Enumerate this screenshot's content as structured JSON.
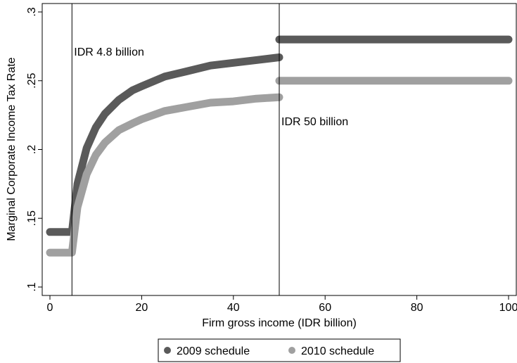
{
  "chart_data": {
    "type": "line",
    "title": "",
    "xlabel": "Firm gross income (IDR billion)",
    "ylabel": "Marginal Corporate Income Tax Rate",
    "xlim": [
      0,
      100
    ],
    "ylim": [
      0.1,
      0.3
    ],
    "x_ticks": [
      0,
      20,
      40,
      60,
      80,
      100
    ],
    "x_tick_labels": [
      "0",
      "20",
      "40",
      "60",
      "80",
      "100"
    ],
    "y_ticks": [
      0.1,
      0.15,
      0.2,
      0.25,
      0.3
    ],
    "y_tick_labels": [
      ".1",
      ".15",
      ".2",
      ".25",
      ".3"
    ],
    "grid": false,
    "legend_position": "bottom",
    "reference_lines": [
      {
        "x": 4.8,
        "label": "IDR 4.8 billion"
      },
      {
        "x": 50,
        "label": "IDR 50 billion"
      }
    ],
    "series": [
      {
        "name": "2009 schedule",
        "color": "#5a5a5a",
        "x": [
          0,
          4.8,
          6,
          8,
          10,
          12,
          15,
          18,
          20,
          25,
          30,
          35,
          40,
          45,
          50,
          50,
          100
        ],
        "values": [
          0.14,
          0.14,
          0.175,
          0.201,
          0.216,
          0.226,
          0.236,
          0.243,
          0.246,
          0.253,
          0.257,
          0.261,
          0.263,
          0.265,
          0.267,
          0.28,
          0.28
        ]
      },
      {
        "name": "2010 schedule",
        "color": "#a0a0a0",
        "x": [
          0,
          4.8,
          6,
          8,
          10,
          12,
          15,
          18,
          20,
          25,
          30,
          35,
          40,
          45,
          50,
          50,
          100
        ],
        "values": [
          0.125,
          0.125,
          0.158,
          0.182,
          0.196,
          0.205,
          0.214,
          0.219,
          0.222,
          0.228,
          0.231,
          0.234,
          0.235,
          0.237,
          0.238,
          0.25,
          0.25
        ]
      }
    ]
  }
}
